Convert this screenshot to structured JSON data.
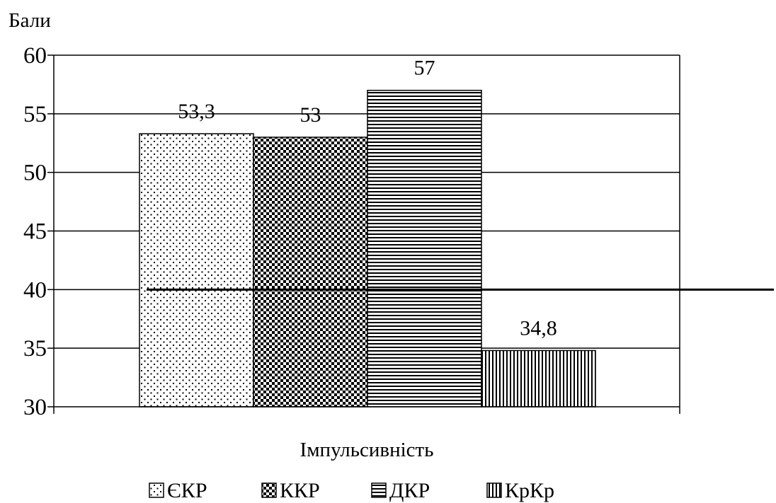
{
  "chart_data": {
    "type": "bar",
    "ylabel": "Бали",
    "xlabel": "Імпульсивність",
    "ylim": [
      30,
      60
    ],
    "yticks": [
      30,
      35,
      40,
      45,
      50,
      55,
      60
    ],
    "grid": true,
    "reference_line": 40,
    "legend_position": "bottom",
    "series": [
      {
        "name": "ЄКР",
        "value": 53.3,
        "label": "53,3",
        "pattern": "dots"
      },
      {
        "name": "ККР",
        "value": 53,
        "label": "53",
        "pattern": "checker"
      },
      {
        "name": "ДКР",
        "value": 57,
        "label": "57",
        "pattern": "horizontal-lines"
      },
      {
        "name": "КрКр",
        "value": 34.8,
        "label": "34,8",
        "pattern": "vertical-lines"
      }
    ]
  }
}
